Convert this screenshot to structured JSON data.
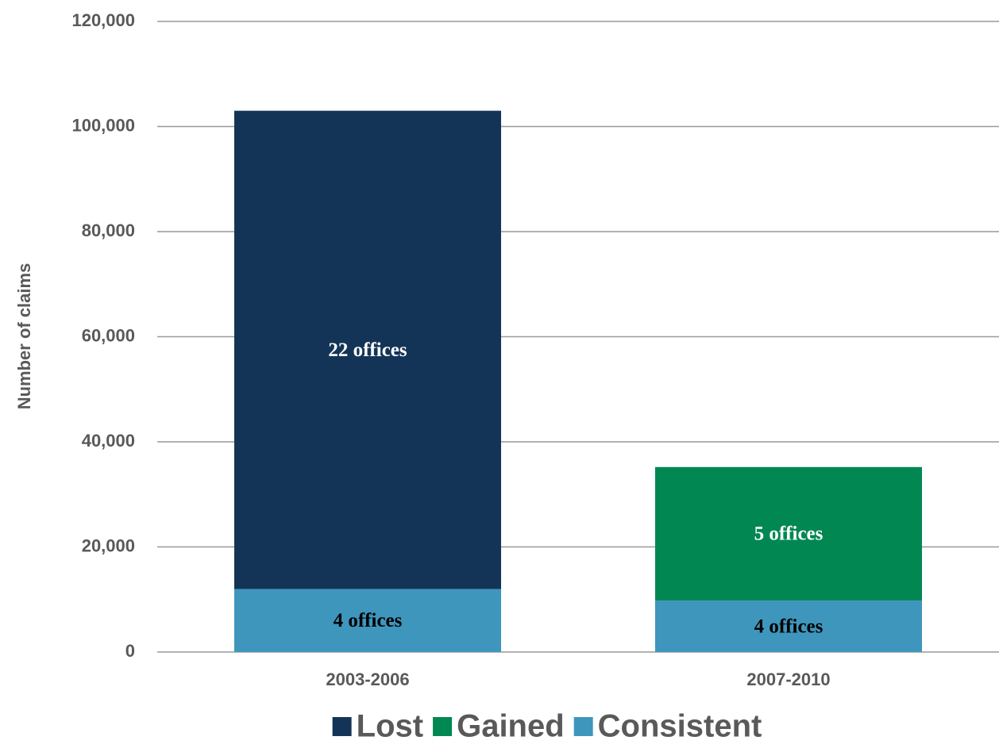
{
  "chart_data": {
    "type": "stacked_bar",
    "y_label": "Number of claims",
    "categories": [
      "2003-2006",
      "2007-2010"
    ],
    "series": [
      {
        "name": "Consistent",
        "color": "#3f96bc",
        "values": [
          12000,
          9800
        ],
        "annotations": [
          "4 offices",
          "4 offices"
        ],
        "annotation_color": "#000000"
      },
      {
        "name": "Lost",
        "color": "#143457",
        "values": [
          91000,
          null
        ],
        "annotations": [
          "22 offices",
          null
        ],
        "annotation_color": "#ffffff"
      },
      {
        "name": "Gained",
        "color": "#008752",
        "values": [
          null,
          25400
        ],
        "annotations": [
          null,
          "5 offices"
        ],
        "annotation_color": "#ffffff"
      }
    ],
    "legend_order": [
      1,
      2,
      0
    ],
    "ylim": [
      0,
      120000
    ],
    "yticks": [
      0,
      {
        "value": 20000,
        "label": "20,000"
      },
      {
        "value": 40000,
        "label": "40,000"
      },
      {
        "value": 60000,
        "label": "60,000"
      },
      {
        "value": 80000,
        "label": "80,000"
      },
      {
        "value": 100000,
        "label": "100,000"
      },
      {
        "value": 120000,
        "label": "120,000"
      }
    ],
    "grid": true,
    "legend": "bottom"
  }
}
